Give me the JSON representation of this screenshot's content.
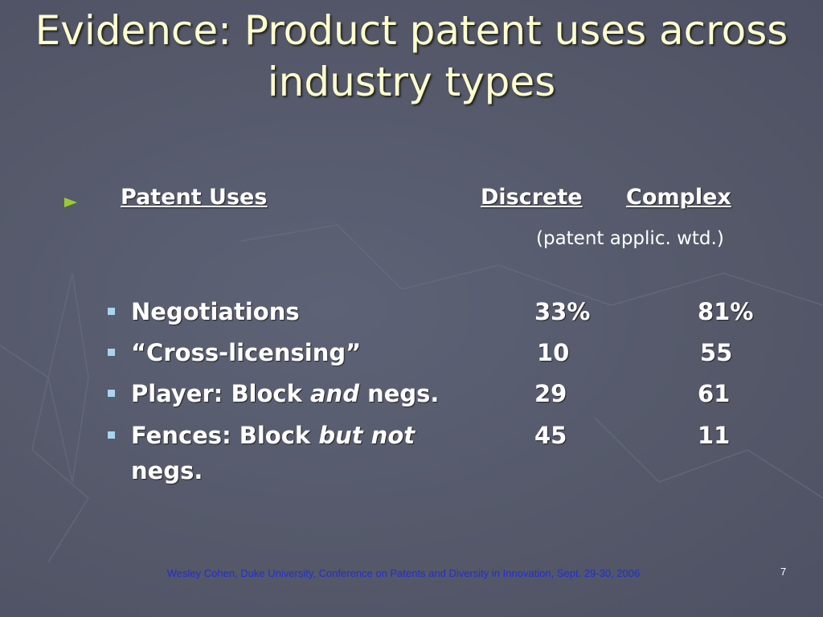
{
  "slide": {
    "title": "Evidence: Product patent uses across industry types",
    "header": {
      "label": "Patent Uses",
      "col1": "Discrete",
      "col2": "Complex"
    },
    "subheader": "(patent applic. wtd.)",
    "rows": [
      {
        "label_parts": [
          {
            "text": "Negotiations",
            "italic": false
          }
        ],
        "col1": "33%",
        "col2": "81%"
      },
      {
        "label_parts": [
          {
            "text": "“Cross-licensing”",
            "italic": false
          }
        ],
        "col1": "10",
        "col2": "55"
      },
      {
        "label_parts": [
          {
            "text": "Player: Block ",
            "italic": false
          },
          {
            "text": "and",
            "italic": true
          },
          {
            "text": " negs.",
            "italic": false
          }
        ],
        "col1": "29",
        "col2": "61"
      },
      {
        "label_parts": [
          {
            "text": "Fences: Block ",
            "italic": false
          },
          {
            "text": "but not",
            "italic": true
          },
          {
            "text": " negs.",
            "italic": false
          }
        ],
        "col1": "45",
        "col2": "11"
      }
    ],
    "footer": "Wesley Cohen, Duke University, Conference on Patents and Diversity in Innovation, Sept. 29-30, 2006",
    "page_number": "7"
  }
}
